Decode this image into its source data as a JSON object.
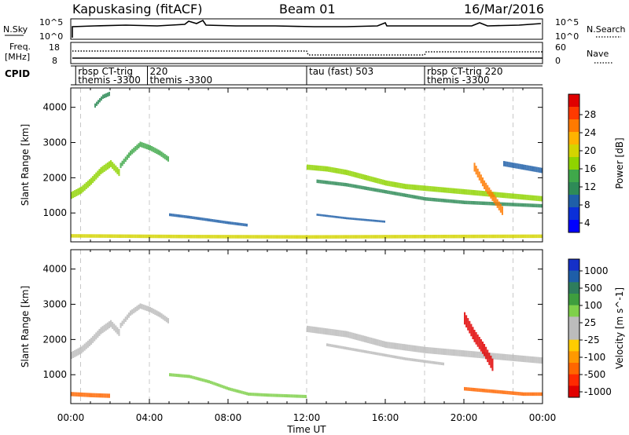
{
  "header": {
    "station": "Kapuskasing (fitACF)",
    "beam": "Beam 01",
    "date": "16/Mar/2016"
  },
  "nsky_panel": {
    "left_label": "N.Sky",
    "right_label": "N.Search",
    "left_ticks": [
      "10^5",
      "10^0"
    ],
    "right_ticks": [
      "10^5",
      "10^0"
    ]
  },
  "freq_panel": {
    "left_label_1": "Freq.",
    "left_label_2": "[MHz]",
    "right_label": "Nave",
    "left_ticks": [
      "18",
      "8"
    ],
    "right_ticks": [
      "60",
      "0"
    ]
  },
  "cpid_panel": {
    "label": "CPID",
    "segments": [
      {
        "start_h": 0.25,
        "end_h": 3.9,
        "line1": "rbsp CT-trig",
        "line2": "themis -3300"
      },
      {
        "start_h": 3.9,
        "end_h": 12.0,
        "line1": "220",
        "line2": "themis -3300"
      },
      {
        "start_h": 12.0,
        "end_h": 18.0,
        "line1": "tau (fast) 503",
        "line2": ""
      },
      {
        "start_h": 18.0,
        "end_h": 23.7,
        "line1": "rbsp CT-trig 220",
        "line2": "themis -3300"
      }
    ]
  },
  "time_axis": {
    "label": "Time UT",
    "ticks": [
      "00:00",
      "04:00",
      "08:00",
      "12:00",
      "16:00",
      "20:00",
      "00:00"
    ],
    "tick_hours": [
      0,
      4,
      8,
      12,
      16,
      20,
      24
    ]
  },
  "power_colorbar": {
    "label": "Power [dB]",
    "tick_labels": [
      "28",
      "24",
      "20",
      "16",
      "12",
      "8",
      "4"
    ],
    "colors": [
      "#e00000",
      "#ff3a00",
      "#ff7a00",
      "#ffb300",
      "#d4d400",
      "#8fd400",
      "#3fa84a",
      "#2e8b57",
      "#1f5fa8",
      "#0b2fd8",
      "#0000ff"
    ]
  },
  "velocity_colorbar": {
    "label": "Velocity [m s^-1]",
    "tick_labels": [
      "1000",
      "500",
      "100",
      "25",
      "-25",
      "-100",
      "-500",
      "-1000"
    ],
    "colors": [
      "#1530c8",
      "#1e5ea8",
      "#2e7d5c",
      "#3e9e3e",
      "#7fd04a",
      "#bcbcbc",
      "#bcbcbc",
      "#ffcc00",
      "#ff9900",
      "#ff6600",
      "#ff2a00",
      "#e00000"
    ]
  },
  "chart_data": [
    {
      "type": "heatmap",
      "name": "power",
      "xlabel": "Time UT",
      "ylabel": "Slant Range [km]",
      "xlim": [
        0,
        24
      ],
      "ylim": [
        180,
        4550
      ],
      "y_ticks": [
        1000,
        2000,
        3000,
        4000
      ],
      "y_tick_labels": [
        "1000",
        "2000",
        "3000",
        "4000"
      ],
      "units": "dB",
      "scale": [
        0,
        32
      ],
      "echo_bands": [
        {
          "t": [
            0.0,
            0.5,
            1.0,
            1.5,
            2.0,
            2.5
          ],
          "range": [
            1500,
            1650,
            1900,
            2200,
            2400,
            2100
          ],
          "width": 200,
          "power": 16
        },
        {
          "t": [
            2.5,
            3.0,
            3.5,
            4.0,
            4.5,
            5.0
          ],
          "range": [
            2350,
            2700,
            2950,
            2850,
            2700,
            2500
          ],
          "width": 150,
          "power": 12
        },
        {
          "t": [
            1.2,
            1.6,
            2.0
          ],
          "range": [
            4050,
            4300,
            4400
          ],
          "width": 120,
          "power": 10
        },
        {
          "t": [
            5.0,
            6.0,
            7.0,
            8.0,
            9.0
          ],
          "range": [
            950,
            880,
            800,
            720,
            650
          ],
          "width": 80,
          "power": 8
        },
        {
          "t": [
            12.0,
            13.0,
            14.0,
            15.0,
            16.0,
            17.0,
            18.0,
            19.0,
            20.0,
            21.0,
            22.0,
            23.0,
            24.0
          ],
          "range": [
            2300,
            2250,
            2150,
            2000,
            1850,
            1750,
            1700,
            1650,
            1600,
            1550,
            1500,
            1450,
            1400
          ],
          "width": 150,
          "power": 16
        },
        {
          "t": [
            12.5,
            14.0,
            16.0,
            18.0,
            20.0,
            22.0,
            24.0
          ],
          "range": [
            1900,
            1800,
            1600,
            1400,
            1300,
            1250,
            1200
          ],
          "width": 100,
          "power": 10
        },
        {
          "t": [
            12.5,
            14.0,
            16.0
          ],
          "range": [
            950,
            850,
            750
          ],
          "width": 60,
          "power": 8
        },
        {
          "t": [
            20.5,
            21.0,
            21.5,
            22.0
          ],
          "range": [
            2300,
            1800,
            1400,
            1000
          ],
          "width": 250,
          "power": 26
        },
        {
          "t": [
            22.0,
            23.0,
            24.0
          ],
          "range": [
            2400,
            2300,
            2200
          ],
          "width": 150,
          "power": 8
        },
        {
          "t": [
            0.0,
            6.0,
            12.0,
            18.0,
            24.0
          ],
          "range": [
            350,
            330,
            320,
            330,
            340
          ],
          "width": 100,
          "power": 20
        }
      ]
    },
    {
      "type": "heatmap",
      "name": "velocity",
      "xlabel": "Time UT",
      "ylabel": "Slant Range [km]",
      "xlim": [
        0,
        24
      ],
      "ylim": [
        180,
        4550
      ],
      "y_ticks": [
        1000,
        2000,
        3000,
        4000
      ],
      "y_tick_labels": [
        "1000",
        "2000",
        "3000",
        "4000"
      ],
      "units": "m s^-1",
      "scale": [
        -1000,
        1000
      ],
      "echo_bands": [
        {
          "t": [
            0.0,
            0.5,
            1.0,
            1.5,
            2.0,
            2.5
          ],
          "range": [
            1550,
            1700,
            1950,
            2250,
            2450,
            2150
          ],
          "width": 200,
          "velocity": 0
        },
        {
          "t": [
            2.5,
            3.0,
            3.5,
            4.0,
            4.5,
            5.0
          ],
          "range": [
            2400,
            2750,
            2950,
            2850,
            2700,
            2500
          ],
          "width": 150,
          "velocity": 0
        },
        {
          "t": [
            5.0,
            6.0,
            7.0,
            8.0,
            9.0,
            10.0,
            11.0,
            12.0
          ],
          "range": [
            1000,
            950,
            800,
            600,
            450,
            420,
            400,
            380
          ],
          "width": 90,
          "velocity": 80
        },
        {
          "t": [
            12.0,
            14.0,
            16.0,
            18.0,
            20.0,
            22.0,
            24.0
          ],
          "range": [
            2300,
            2150,
            1850,
            1700,
            1600,
            1500,
            1400
          ],
          "width": 180,
          "velocity": 0
        },
        {
          "t": [
            13.0,
            15.0,
            17.0,
            19.0
          ],
          "range": [
            1850,
            1650,
            1450,
            1300
          ],
          "width": 80,
          "velocity": 0
        },
        {
          "t": [
            20.0,
            20.5,
            21.0,
            21.5
          ],
          "range": [
            2600,
            2100,
            1700,
            1200
          ],
          "width": 350,
          "velocity": -600
        },
        {
          "t": [
            0.0,
            1.0,
            2.0
          ],
          "range": [
            450,
            420,
            400
          ],
          "width": 120,
          "velocity": -300
        },
        {
          "t": [
            20.0,
            21.0,
            22.0,
            23.0,
            24.0
          ],
          "range": [
            600,
            550,
            500,
            450,
            450
          ],
          "width": 100,
          "velocity": -300
        }
      ]
    }
  ]
}
